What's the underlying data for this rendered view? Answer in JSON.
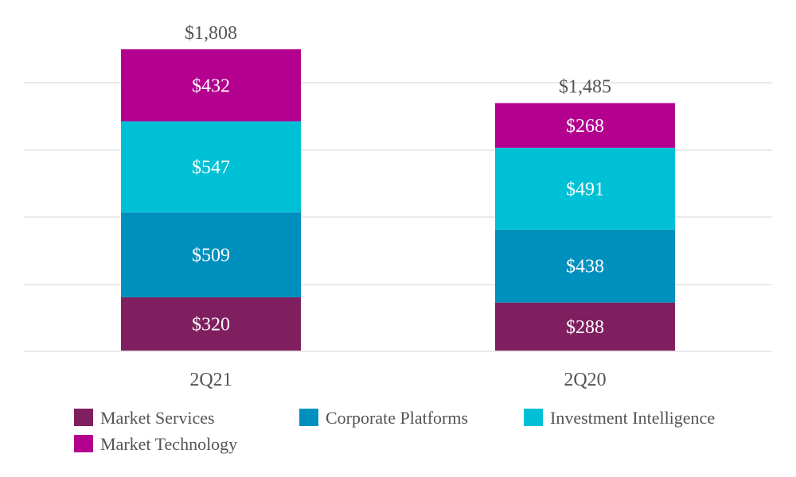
{
  "chart_data": {
    "type": "bar",
    "stacked": true,
    "categories": [
      "2Q21",
      "2Q20"
    ],
    "totals": [
      "$1,808",
      "$1,485"
    ],
    "total_values": [
      1808,
      1485
    ],
    "series": [
      {
        "name": "Market Services",
        "color": "#7f1f5f",
        "values": [
          320,
          288
        ],
        "labels": [
          "$320",
          "$288"
        ]
      },
      {
        "name": "Corporate Platforms",
        "color": "#0090bd",
        "values": [
          509,
          438
        ],
        "labels": [
          "$509",
          "$438"
        ]
      },
      {
        "name": "Investment Intelligence",
        "color": "#00c0d6",
        "values": [
          547,
          491
        ],
        "labels": [
          "$547",
          "$491"
        ]
      },
      {
        "name": "Market Technology",
        "color": "#b3008f",
        "values": [
          432,
          268
        ],
        "labels": [
          "$432",
          "$268"
        ]
      }
    ],
    "ylim": [
      0,
      1808
    ],
    "grid": true,
    "legend_placement": "bottom",
    "title": "",
    "xlabel": "",
    "ylabel": ""
  }
}
